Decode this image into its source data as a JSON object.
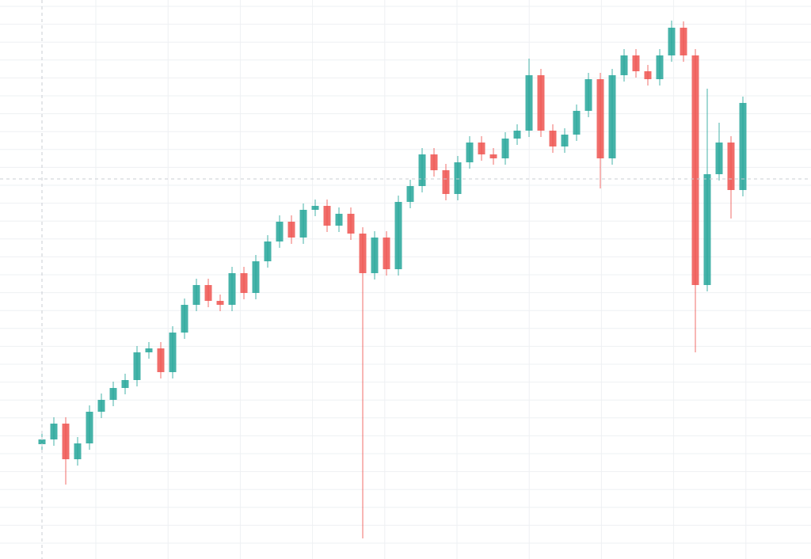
{
  "chart_data": {
    "type": "candlestick",
    "ylim": [
      0,
      706
    ],
    "up_color": "#26a69a",
    "down_color": "#ef5350",
    "series": [
      {
        "open": [
          145,
          151,
          171,
          126,
          146,
          186,
          201,
          216,
          226,
          261,
          266,
          236,
          286,
          321,
          346,
          326,
          321,
          361,
          336,
          376,
          401,
          426,
          406,
          441,
          446,
          421,
          436,
          411,
          361,
          406,
          366,
          451,
          471,
          511,
          491,
          461,
          501,
          526,
          511,
          506,
          531,
          541,
          611,
          541,
          521,
          536,
          566,
          606,
          506,
          611,
          636,
          616,
          606,
          636,
          671,
          636,
          346,
          486,
          526,
          466
        ],
        "high": [
          159,
          179,
          179,
          154,
          194,
          209,
          224,
          234,
          269,
          274,
          274,
          294,
          329,
          354,
          354,
          334,
          369,
          369,
          384,
          409,
          434,
          434,
          449,
          454,
          454,
          444,
          444,
          419,
          414,
          414,
          459,
          479,
          519,
          519,
          499,
          509,
          534,
          534,
          519,
          539,
          549,
          632,
          619,
          549,
          544,
          574,
          614,
          614,
          619,
          644,
          644,
          624,
          644,
          680,
          679,
          644,
          594,
          551,
          534,
          584
        ],
        "low": [
          137,
          143,
          94,
          118,
          138,
          178,
          193,
          208,
          218,
          253,
          228,
          228,
          278,
          313,
          318,
          313,
          313,
          328,
          328,
          368,
          393,
          398,
          398,
          433,
          413,
          413,
          403,
          26,
          353,
          358,
          358,
          443,
          463,
          483,
          453,
          453,
          493,
          503,
          498,
          498,
          523,
          533,
          533,
          513,
          513,
          528,
          558,
          468,
          498,
          603,
          608,
          598,
          598,
          628,
          628,
          261,
          338,
          478,
          430,
          458
        ],
        "close": [
          151,
          171,
          126,
          146,
          186,
          201,
          216,
          226,
          261,
          266,
          236,
          286,
          321,
          346,
          326,
          321,
          361,
          336,
          376,
          401,
          426,
          406,
          441,
          446,
          421,
          436,
          411,
          361,
          406,
          366,
          451,
          471,
          511,
          491,
          461,
          501,
          526,
          511,
          506,
          531,
          541,
          611,
          541,
          521,
          536,
          566,
          606,
          506,
          611,
          636,
          616,
          606,
          636,
          671,
          636,
          346,
          486,
          526,
          466,
          576
        ]
      }
    ]
  }
}
